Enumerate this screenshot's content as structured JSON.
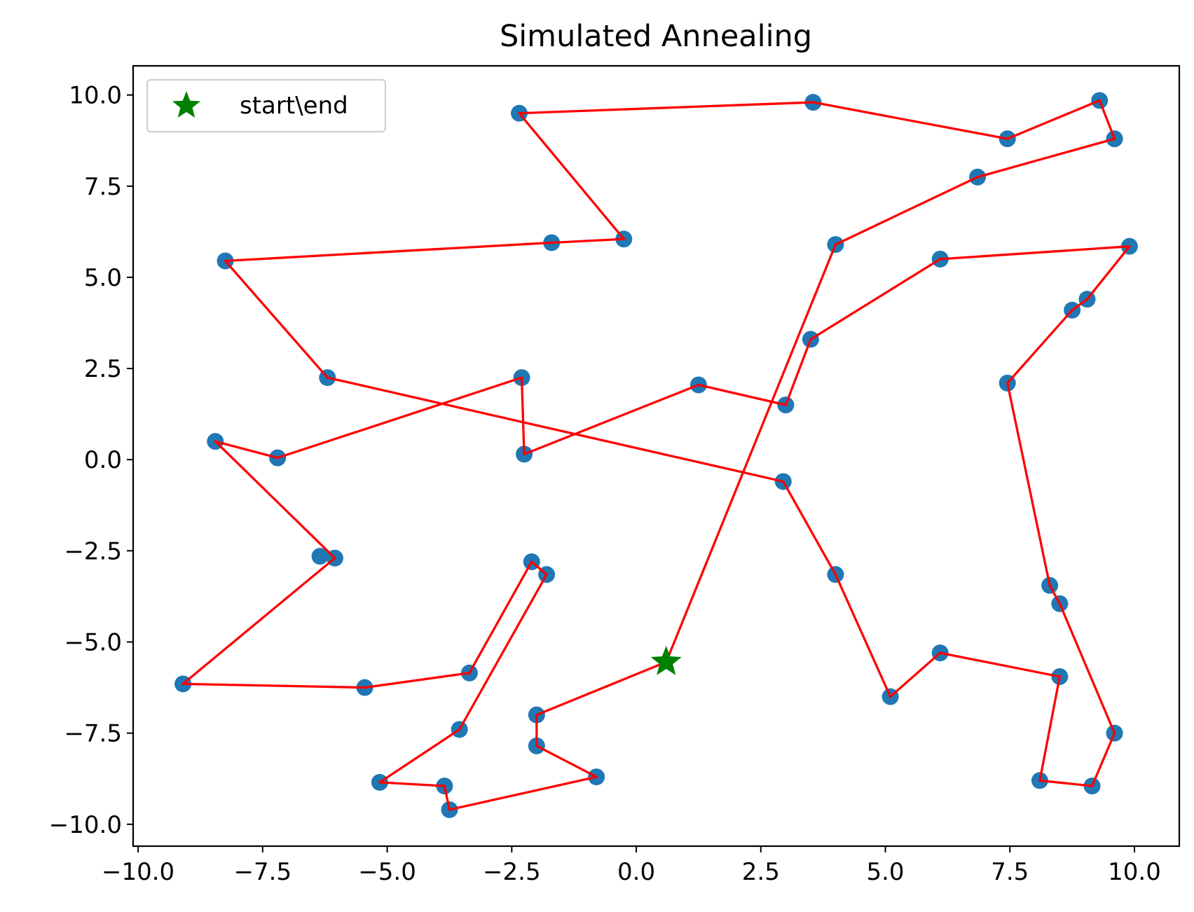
{
  "chart_data": {
    "type": "scatter",
    "title": "Simulated Annealing",
    "xlabel": "",
    "ylabel": "",
    "xlim": [
      -10.1,
      10.9
    ],
    "ylim": [
      -10.6,
      10.8
    ],
    "x_ticks": [
      -10.0,
      -7.5,
      -5.0,
      -2.5,
      0.0,
      2.5,
      5.0,
      7.5,
      10.0
    ],
    "y_ticks": [
      -10.0,
      -7.5,
      -5.0,
      -2.5,
      0.0,
      2.5,
      5.0,
      7.5,
      10.0
    ],
    "x_tick_labels": [
      "−10.0",
      "−7.5",
      "−5.0",
      "−2.5",
      "0.0",
      "2.5",
      "5.0",
      "7.5",
      "10.0"
    ],
    "y_tick_labels": [
      "−10.0",
      "−7.5",
      "−5.0",
      "−2.5",
      "0.0",
      "2.5",
      "5.0",
      "7.5",
      "10.0"
    ],
    "grid": false,
    "legend": {
      "position": "top-left",
      "entries": [
        {
          "label": "start\\end",
          "marker": "star",
          "color": "#008000"
        }
      ]
    },
    "colors": {
      "points": "#1f77b4",
      "route": "#ff0000",
      "start": "#008000"
    },
    "start": [
      0.6,
      -5.55
    ],
    "route": [
      [
        0.6,
        -5.55
      ],
      [
        4.0,
        5.9
      ],
      [
        6.85,
        7.75
      ],
      [
        9.6,
        8.8
      ],
      [
        9.3,
        9.85
      ],
      [
        7.45,
        8.8
      ],
      [
        3.55,
        9.8
      ],
      [
        -2.35,
        9.5
      ],
      [
        -0.25,
        6.05
      ],
      [
        -1.7,
        5.95
      ],
      [
        -8.25,
        5.45
      ],
      [
        -6.2,
        2.25
      ],
      [
        2.95,
        -0.6
      ],
      [
        4.0,
        -3.15
      ],
      [
        5.1,
        -6.5
      ],
      [
        6.1,
        -5.3
      ],
      [
        8.5,
        -5.95
      ],
      [
        8.1,
        -8.8
      ],
      [
        9.15,
        -8.95
      ],
      [
        9.6,
        -7.5
      ],
      [
        8.5,
        -3.95
      ],
      [
        8.3,
        -3.45
      ],
      [
        7.45,
        2.1
      ],
      [
        8.75,
        4.1
      ],
      [
        9.05,
        4.4
      ],
      [
        9.9,
        5.85
      ],
      [
        6.1,
        5.5
      ],
      [
        3.5,
        3.3
      ],
      [
        3.0,
        1.5
      ],
      [
        1.25,
        2.05
      ],
      [
        -2.25,
        0.15
      ],
      [
        -2.3,
        2.25
      ],
      [
        -7.2,
        0.05
      ],
      [
        -8.45,
        0.5
      ],
      [
        -6.05,
        -2.7
      ],
      [
        -9.1,
        -6.15
      ],
      [
        -5.45,
        -6.25
      ],
      [
        -3.35,
        -5.85
      ],
      [
        -2.1,
        -2.8
      ],
      [
        -1.8,
        -3.15
      ],
      [
        -3.55,
        -7.4
      ],
      [
        -5.15,
        -8.85
      ],
      [
        -3.85,
        -8.95
      ],
      [
        -3.75,
        -9.6
      ],
      [
        -0.8,
        -8.7
      ],
      [
        -2.0,
        -7.85
      ],
      [
        -2.0,
        -7.0
      ],
      [
        0.6,
        -5.55
      ]
    ],
    "extra_points": [
      [
        -6.35,
        -2.65
      ]
    ]
  }
}
